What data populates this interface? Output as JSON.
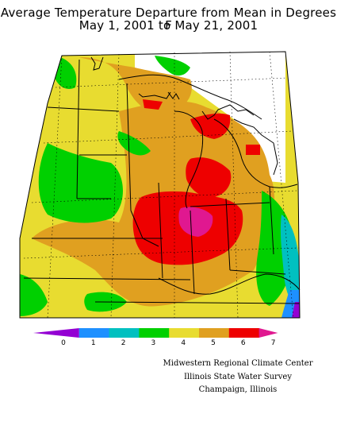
{
  "title": {
    "line1": "Average Temperature Departure from Mean in Degrees F",
    "line2": "May 1, 2001 to May 21, 2001"
  },
  "legend": {
    "bins": [
      {
        "color": "#9400d3"
      },
      {
        "color": "#1e90ff"
      },
      {
        "color": "#00c0c0"
      },
      {
        "color": "#00d000"
      },
      {
        "color": "#e8dc30"
      },
      {
        "color": "#e0a020"
      },
      {
        "color": "#ee0000"
      },
      {
        "color": "#e01890"
      }
    ],
    "ticks": [
      "0",
      "1",
      "2",
      "3",
      "4",
      "5",
      "6",
      "7"
    ]
  },
  "credits": {
    "line1": "Midwestern Regional Climate Center",
    "line2": "Illinois State Water Survey",
    "line3": "Champaign, Illinois"
  }
}
